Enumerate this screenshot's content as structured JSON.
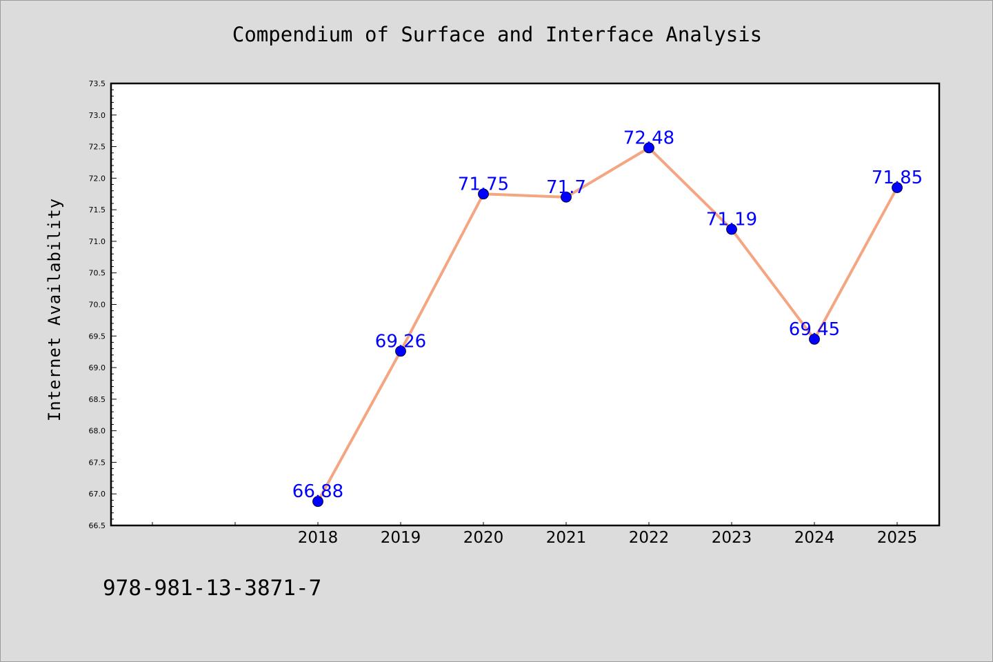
{
  "chart_data": {
    "type": "line",
    "title": "Compendium of Surface and Interface Analysis",
    "xlabel": "",
    "ylabel": "Internet Availability",
    "categories": [
      "2018",
      "2019",
      "2020",
      "2021",
      "2022",
      "2023",
      "2024",
      "2025"
    ],
    "x_axis_extra_slots_before": 2,
    "series": [
      {
        "values": [
          66.88,
          69.26,
          71.75,
          71.7,
          72.48,
          71.19,
          69.45,
          71.85
        ],
        "data_labels": [
          "66.88",
          "69.26",
          "71.75",
          "71.7",
          "72.48",
          "71.19",
          "69.45",
          "71.85"
        ],
        "line_color": "#f4a582",
        "marker_color": "#0000ff",
        "label_color": "#0000ff"
      }
    ],
    "ylim": [
      66.5,
      73.5
    ],
    "y_major_step": 0.5,
    "y_minor_step": 0.1,
    "y_tick_labels": [
      "66.5",
      "67.0",
      "67.5",
      "68.0",
      "68.5",
      "69.0",
      "69.5",
      "70.0",
      "70.5",
      "71.0",
      "71.5",
      "72.0",
      "72.5",
      "73.0",
      "73.5"
    ],
    "grid": false,
    "legend": "none",
    "footnote": "978-981-13-3871-7",
    "background_color": "#dcdcdc",
    "plot_background_color": "#ffffff"
  }
}
